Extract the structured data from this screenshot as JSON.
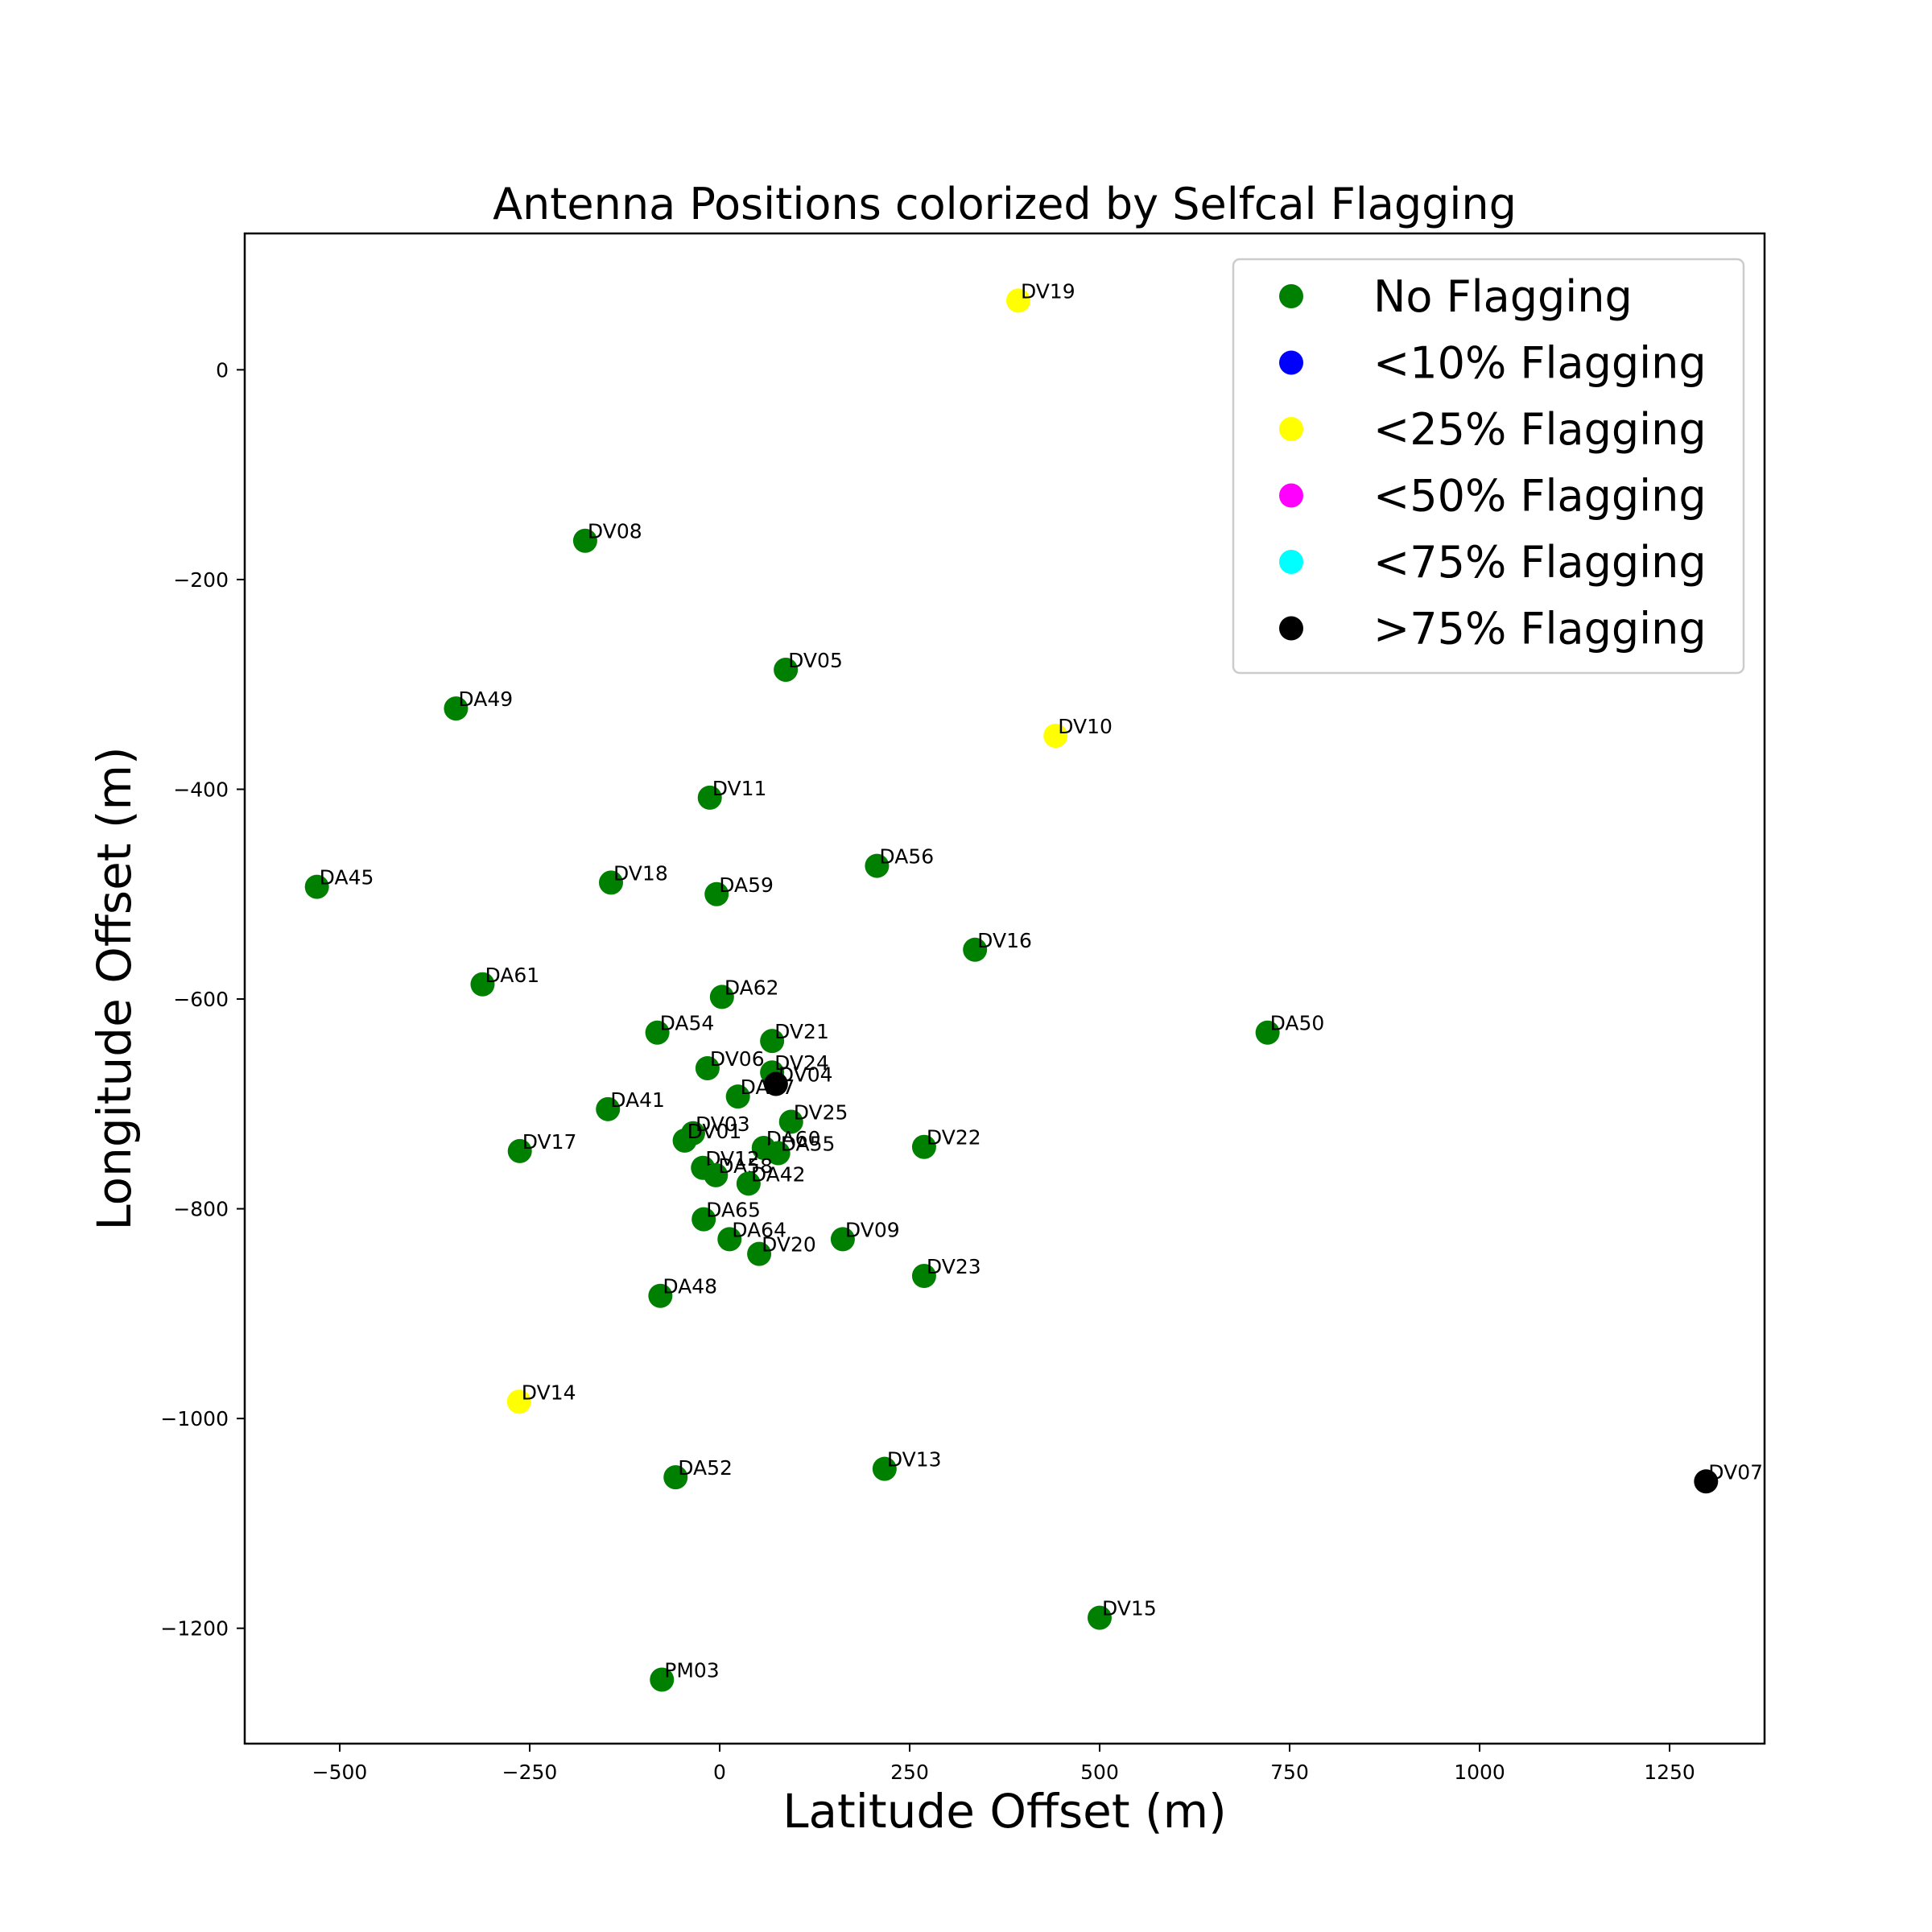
{
  "chart_data": {
    "type": "scatter",
    "title": "Antenna Positions colorized by Selfcal Flagging",
    "xlabel": "Latitude Offset (m)",
    "ylabel": "Longitude Offset (m)",
    "xlim": [
      -625,
      1375
    ],
    "ylim": [
      -1310,
      130
    ],
    "xticks": [
      -500,
      -250,
      0,
      250,
      500,
      750,
      1000,
      1250
    ],
    "xtick_labels": [
      "−500",
      "−250",
      "0",
      "250",
      "500",
      "750",
      "1000",
      "1250"
    ],
    "yticks": [
      0,
      -200,
      -400,
      -600,
      -800,
      -1000,
      -1200
    ],
    "ytick_labels": [
      "0",
      "−200",
      "−400",
      "−600",
      "−800",
      "−1000",
      "−1200"
    ],
    "grid": false,
    "legend_position": "top-right",
    "categories": [
      {
        "key": "none",
        "label": "No Flagging",
        "color": "#008000"
      },
      {
        "key": "lt10",
        "label": "<10% Flagging",
        "color": "#0000ff"
      },
      {
        "key": "lt25",
        "label": "<25% Flagging",
        "color": "#ffff00"
      },
      {
        "key": "lt50",
        "label": "<50% Flagging",
        "color": "#ff00ff"
      },
      {
        "key": "lt75",
        "label": "<75% Flagging",
        "color": "#00ffff"
      },
      {
        "key": "gt75",
        "label": ">75% Flagging",
        "color": "#000000"
      }
    ],
    "points": [
      {
        "name": "DV19",
        "x": 393,
        "y": 66,
        "cat": "lt25"
      },
      {
        "name": "DV08",
        "x": -177,
        "y": -163,
        "cat": "none"
      },
      {
        "name": "DV05",
        "x": 87,
        "y": -286,
        "cat": "none"
      },
      {
        "name": "DA49",
        "x": -347,
        "y": -323,
        "cat": "none"
      },
      {
        "name": "DV10",
        "x": 442,
        "y": -349,
        "cat": "lt25"
      },
      {
        "name": "DV11",
        "x": -13,
        "y": -408,
        "cat": "none"
      },
      {
        "name": "DA56",
        "x": 207,
        "y": -473,
        "cat": "none"
      },
      {
        "name": "DA45",
        "x": -530,
        "y": -493,
        "cat": "none"
      },
      {
        "name": "DV18",
        "x": -143,
        "y": -489,
        "cat": "none"
      },
      {
        "name": "DA59",
        "x": -4,
        "y": -500,
        "cat": "none"
      },
      {
        "name": "DV16",
        "x": 336,
        "y": -553,
        "cat": "none"
      },
      {
        "name": "DA61",
        "x": -312,
        "y": -586,
        "cat": "none"
      },
      {
        "name": "DA62",
        "x": 3,
        "y": -598,
        "cat": "none"
      },
      {
        "name": "DA54",
        "x": -82,
        "y": -632,
        "cat": "none"
      },
      {
        "name": "DA50",
        "x": 721,
        "y": -632,
        "cat": "none"
      },
      {
        "name": "DV21",
        "x": 69,
        "y": -640,
        "cat": "none"
      },
      {
        "name": "DV06",
        "x": -16,
        "y": -666,
        "cat": "none"
      },
      {
        "name": "DV24",
        "x": 69,
        "y": -670,
        "cat": "none"
      },
      {
        "name": "DV04",
        "x": 74,
        "y": -681,
        "cat": "gt75"
      },
      {
        "name": "DA57",
        "x": 24,
        "y": -693,
        "cat": "none"
      },
      {
        "name": "DA41",
        "x": -147,
        "y": -705,
        "cat": "none"
      },
      {
        "name": "DV25",
        "x": 94,
        "y": -717,
        "cat": "none"
      },
      {
        "name": "DV03",
        "x": -35,
        "y": -728,
        "cat": "none"
      },
      {
        "name": "DV01",
        "x": -46,
        "y": -735,
        "cat": "none"
      },
      {
        "name": "DA60",
        "x": 58,
        "y": -742,
        "cat": "none"
      },
      {
        "name": "DA55",
        "x": 77,
        "y": -747,
        "cat": "none"
      },
      {
        "name": "DV22",
        "x": 269,
        "y": -741,
        "cat": "none"
      },
      {
        "name": "DV17",
        "x": -263,
        "y": -745,
        "cat": "none"
      },
      {
        "name": "DV12",
        "x": -22,
        "y": -761,
        "cat": "none"
      },
      {
        "name": "DA58",
        "x": -5,
        "y": -768,
        "cat": "none"
      },
      {
        "name": "DA42",
        "x": 38,
        "y": -776,
        "cat": "none"
      },
      {
        "name": "DA65",
        "x": -21,
        "y": -810,
        "cat": "none"
      },
      {
        "name": "DA64",
        "x": 13,
        "y": -829,
        "cat": "none"
      },
      {
        "name": "DV09",
        "x": 162,
        "y": -829,
        "cat": "none"
      },
      {
        "name": "DV20",
        "x": 52,
        "y": -843,
        "cat": "none"
      },
      {
        "name": "DV23",
        "x": 269,
        "y": -864,
        "cat": "none"
      },
      {
        "name": "DA48",
        "x": -78,
        "y": -883,
        "cat": "none"
      },
      {
        "name": "DV14",
        "x": -264,
        "y": -984,
        "cat": "lt25"
      },
      {
        "name": "DV13",
        "x": 217,
        "y": -1048,
        "cat": "none"
      },
      {
        "name": "DA52",
        "x": -58,
        "y": -1056,
        "cat": "none"
      },
      {
        "name": "DV07",
        "x": 1298,
        "y": -1060,
        "cat": "gt75"
      },
      {
        "name": "DV15",
        "x": 500,
        "y": -1190,
        "cat": "none"
      },
      {
        "name": "PM03",
        "x": -76,
        "y": -1249,
        "cat": "none"
      }
    ]
  }
}
